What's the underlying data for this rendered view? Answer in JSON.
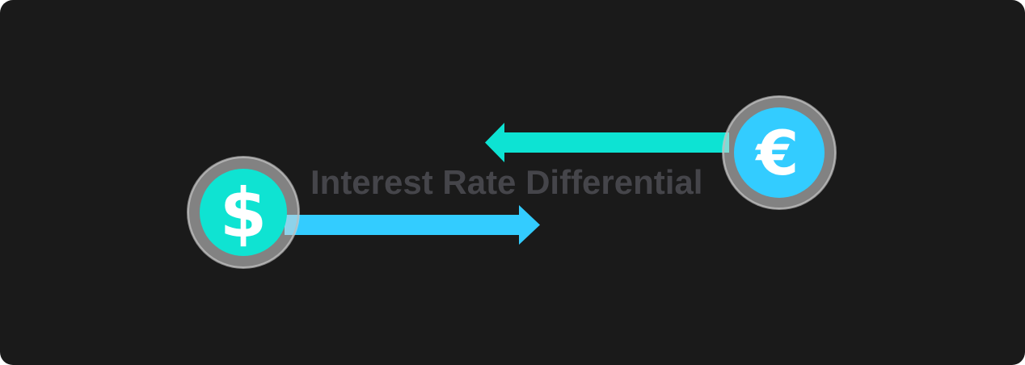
{
  "title": "Interest Rate Differential",
  "coins": {
    "usd": {
      "symbol": "$",
      "fill": "#0fe3d2"
    },
    "eur": {
      "symbol": "€",
      "fill": "#33ccff"
    }
  },
  "arrows": {
    "usd_to_right": {
      "color": "#33ccff"
    },
    "eur_to_left": {
      "color": "#0de3d3"
    }
  },
  "colors": {
    "background": "#1a1a1a",
    "ring": "#8c8c8c",
    "title": "#45454a"
  }
}
